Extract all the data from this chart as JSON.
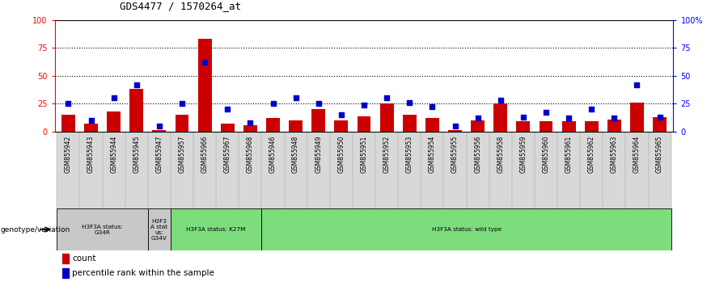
{
  "title": "GDS4477 / 1570264_at",
  "samples": [
    "GSM855942",
    "GSM855943",
    "GSM855944",
    "GSM855945",
    "GSM855947",
    "GSM855957",
    "GSM855966",
    "GSM855967",
    "GSM855968",
    "GSM855946",
    "GSM855948",
    "GSM855949",
    "GSM855950",
    "GSM855951",
    "GSM855952",
    "GSM855953",
    "GSM855954",
    "GSM855955",
    "GSM855956",
    "GSM855958",
    "GSM855959",
    "GSM855960",
    "GSM855961",
    "GSM855962",
    "GSM855963",
    "GSM855964",
    "GSM855965"
  ],
  "counts": [
    15,
    7,
    18,
    38,
    1,
    15,
    83,
    7,
    6,
    12,
    10,
    20,
    10,
    14,
    25,
    15,
    12,
    1,
    10,
    25,
    9,
    9,
    9,
    9,
    11,
    26,
    13
  ],
  "percentiles": [
    25,
    10,
    30,
    42,
    5,
    25,
    62,
    20,
    8,
    25,
    30,
    25,
    15,
    24,
    30,
    26,
    22,
    5,
    12,
    28,
    13,
    17,
    12,
    20,
    12,
    42,
    13
  ],
  "groups": [
    {
      "label": "H3F3A status:\nG34R",
      "start": 0,
      "end": 4,
      "color": "#c8c8c8"
    },
    {
      "label": "H3F3\nA stat\nus:\nG34V",
      "start": 4,
      "end": 5,
      "color": "#c8c8c8"
    },
    {
      "label": "H3F3A status: K27M",
      "start": 5,
      "end": 9,
      "color": "#7ddd7d"
    },
    {
      "label": "H3F3A status: wild type",
      "start": 9,
      "end": 27,
      "color": "#7ddd7d"
    }
  ],
  "bar_color": "#cc0000",
  "dot_color": "#0000cc",
  "bg_color": "#ffffff",
  "dotted_lines": [
    25,
    50,
    75
  ],
  "legend_count": "count",
  "legend_pct": "percentile rank within the sample",
  "xlabel_bottom": "genotype/variation",
  "left_yticks": [
    0,
    25,
    50,
    75,
    100
  ],
  "right_ytick_labels": [
    "0",
    "25",
    "50",
    "75",
    "100%"
  ]
}
